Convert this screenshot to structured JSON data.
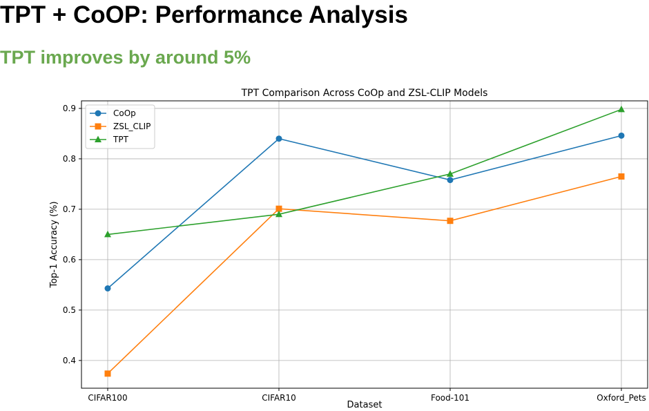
{
  "header": {
    "title": "TPT + CoOP: Performance Analysis",
    "subtitle": "TPT improves by around 5%"
  },
  "chart_data": {
    "type": "line",
    "title": "TPT Comparison Across CoOp and ZSL-CLIP Models",
    "xlabel": "Dataset",
    "ylabel": "Top-1 Accuracy (%)",
    "categories": [
      "CIFAR100",
      "CIFAR10",
      "Food-101",
      "Oxford_Pets"
    ],
    "ylim": [
      0.345,
      0.915
    ],
    "yticks": [
      "0.4",
      "0.5",
      "0.6",
      "0.7",
      "0.8",
      "0.9"
    ],
    "grid": true,
    "legend_position": "top-left",
    "series": [
      {
        "name": "CoOp",
        "color": "#1f77b4",
        "marker": "circle",
        "values": [
          0.543,
          0.84,
          0.758,
          0.846
        ]
      },
      {
        "name": "ZSL_CLIP",
        "color": "#ff7f0e",
        "marker": "square",
        "values": [
          0.374,
          0.701,
          0.677,
          0.765
        ]
      },
      {
        "name": "TPT",
        "color": "#2ca02c",
        "marker": "triangle",
        "values": [
          0.65,
          0.69,
          0.77,
          0.898
        ]
      }
    ]
  }
}
